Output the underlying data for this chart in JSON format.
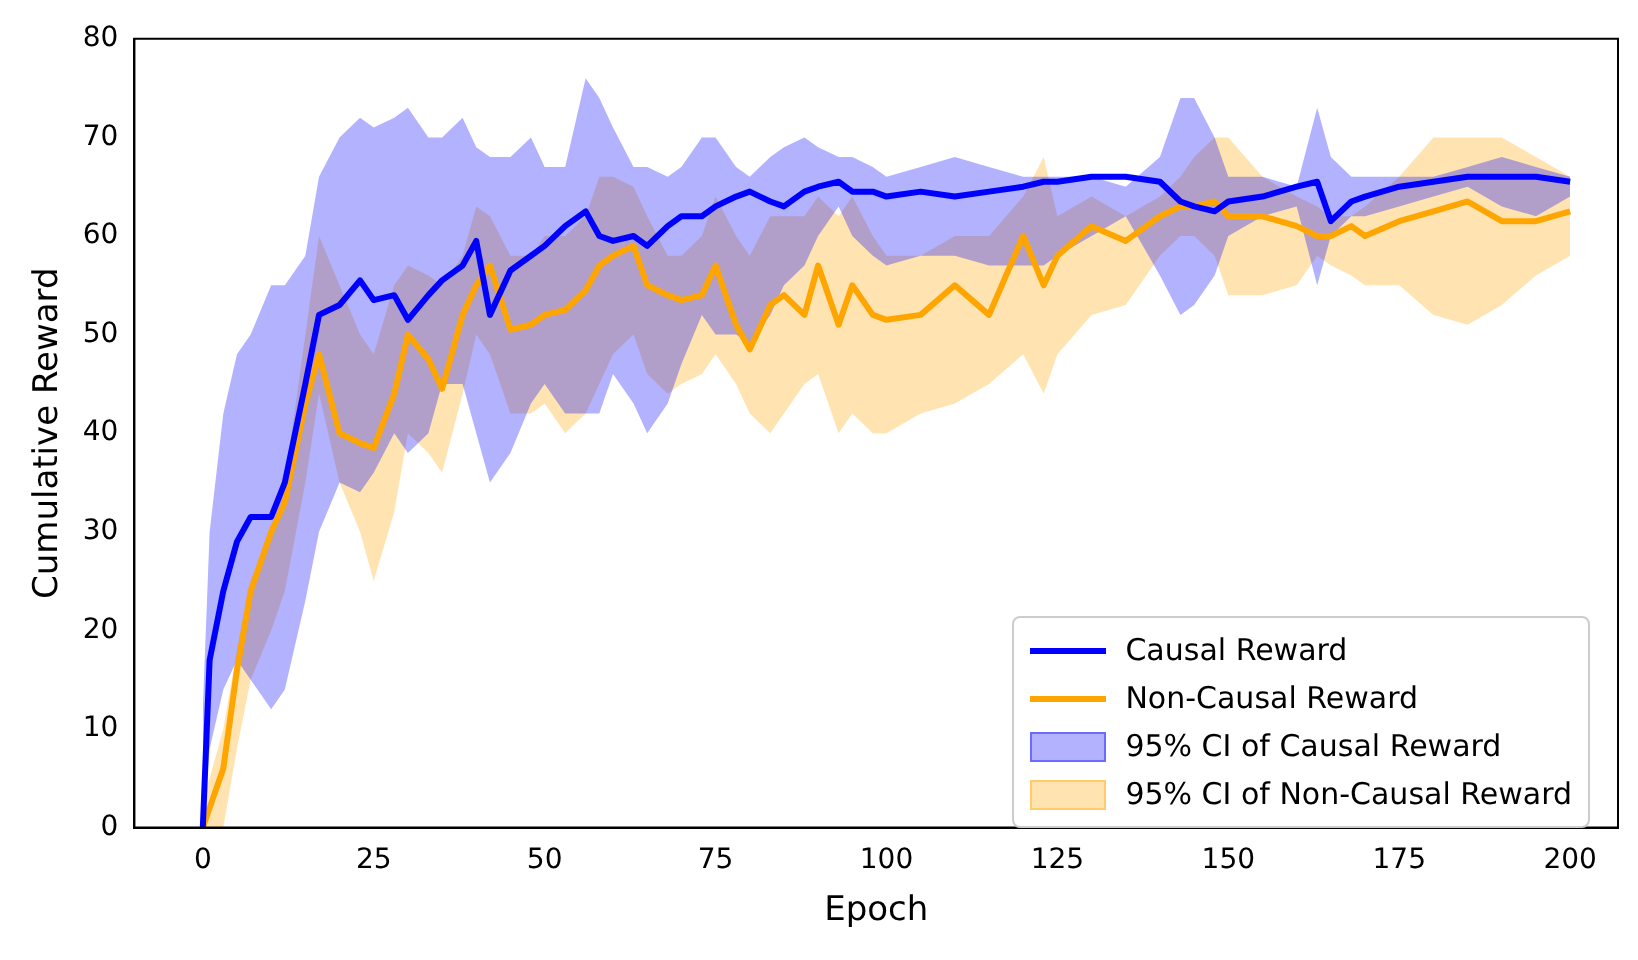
{
  "chart_data": {
    "type": "line",
    "xlabel": "Epoch",
    "ylabel": "Cumulative Reward",
    "xlim": [
      -10,
      207
    ],
    "xticks": [
      0,
      25,
      50,
      75,
      100,
      125,
      150,
      175,
      200
    ],
    "ylim": [
      0,
      80
    ],
    "yticks": [
      0,
      10,
      20,
      30,
      40,
      50,
      60,
      70,
      80
    ],
    "grid": false,
    "legend": "bottom right",
    "marker": "none",
    "line_style": "solid",
    "annotations": [
      "95% CI of Causal Reward",
      "95% CI of Non-Causal Reward"
    ],
    "x": [
      0,
      1,
      3,
      5,
      7,
      10,
      12,
      15,
      17,
      20,
      23,
      25,
      28,
      30,
      33,
      35,
      38,
      40,
      42,
      45,
      48,
      50,
      53,
      56,
      58,
      60,
      63,
      65,
      68,
      70,
      73,
      75,
      78,
      80,
      83,
      85,
      88,
      90,
      93,
      95,
      98,
      100,
      105,
      110,
      115,
      120,
      123,
      125,
      130,
      135,
      140,
      143,
      145,
      148,
      150,
      155,
      160,
      163,
      165,
      168,
      170,
      175,
      180,
      185,
      190,
      195,
      200
    ],
    "series": [
      {
        "name": "Causal Reward",
        "color": "#0000ff",
        "values": [
          0,
          17,
          24,
          29,
          31.5,
          31.5,
          35,
          45,
          52,
          53,
          55.5,
          53.5,
          54,
          51.5,
          54,
          55.5,
          57,
          59.5,
          52,
          56.5,
          58,
          59,
          61,
          62.5,
          60,
          59.5,
          60,
          59,
          61,
          62,
          62,
          63,
          64,
          64.5,
          63.5,
          63,
          64.5,
          65,
          65.5,
          64.5,
          64.5,
          64,
          64.5,
          64,
          64.5,
          65,
          65.5,
          65.5,
          66,
          66,
          65.5,
          63.5,
          63,
          62.5,
          63.5,
          64,
          65,
          65.5,
          61.5,
          63.5,
          64,
          65,
          65.5,
          66,
          66,
          66,
          65.5
        ],
        "lower": [
          0,
          8,
          14,
          17,
          15,
          12,
          14,
          23,
          30,
          35,
          34,
          36,
          40,
          38,
          40,
          45,
          45,
          40,
          35,
          38,
          43,
          45,
          42,
          42,
          42,
          46,
          43,
          40,
          43,
          47,
          52,
          50,
          50,
          49,
          52,
          55,
          57,
          60,
          63,
          60,
          58,
          57,
          58,
          58,
          57,
          57,
          57,
          58,
          60,
          62,
          56,
          52,
          53,
          56,
          60,
          62,
          63,
          55,
          60,
          62,
          62,
          63,
          64,
          65,
          63,
          62,
          64
        ],
        "upper": [
          12,
          30,
          42,
          48,
          50,
          55,
          55,
          58,
          66,
          70,
          72,
          71,
          72,
          73,
          70,
          70,
          72,
          69,
          68,
          68,
          70,
          67,
          67,
          76,
          74,
          71,
          67,
          67,
          66,
          67,
          70,
          70,
          67,
          66,
          68,
          69,
          70,
          69,
          68,
          68,
          67,
          66,
          67,
          68,
          67,
          66,
          66,
          66,
          66,
          65,
          68,
          74,
          74,
          70,
          66,
          66,
          65,
          73,
          68,
          66,
          66,
          66,
          66,
          67,
          68,
          67,
          66
        ]
      },
      {
        "name": "Non-Causal Reward",
        "color": "#ffa500",
        "values": [
          0,
          2,
          6,
          16,
          24,
          30,
          33,
          43,
          48,
          40,
          39,
          38.5,
          44,
          50,
          47.5,
          44.5,
          52,
          55,
          57,
          50.5,
          51,
          52,
          52.5,
          54.5,
          57,
          58,
          59,
          55,
          54,
          53.5,
          54,
          57,
          51,
          48.5,
          53,
          54,
          52,
          57,
          51,
          55,
          52,
          51.5,
          52,
          55,
          52,
          60,
          55,
          58,
          61,
          59.5,
          62,
          63,
          63,
          63.5,
          62,
          62,
          61,
          60,
          60,
          61,
          60,
          61.5,
          62.5,
          63.5,
          61.5,
          61.5,
          62.5
        ],
        "lower": [
          0,
          0,
          0,
          8,
          15,
          20,
          24,
          35,
          44,
          35,
          30,
          25,
          32,
          40,
          38,
          36,
          44,
          50,
          48,
          42,
          42,
          43,
          40,
          42,
          45,
          48,
          50,
          46,
          44,
          45,
          46,
          48,
          45,
          42,
          40,
          42,
          45,
          46,
          40,
          42,
          40,
          40,
          42,
          43,
          45,
          48,
          44,
          48,
          52,
          53,
          58,
          60,
          60,
          58,
          54,
          54,
          55,
          58,
          57,
          56,
          55,
          55,
          52,
          51,
          53,
          56,
          58
        ],
        "upper": [
          3,
          5,
          10,
          18,
          25,
          30,
          35,
          50,
          60,
          55,
          50,
          48,
          55,
          57,
          56,
          55,
          58,
          63,
          62,
          58,
          58,
          60,
          60,
          62,
          66,
          66,
          65,
          62,
          58,
          58,
          60,
          64,
          60,
          58,
          62,
          62,
          62,
          64,
          62,
          64,
          60,
          58,
          58,
          60,
          60,
          64,
          68,
          62,
          64,
          62,
          64,
          66,
          68,
          70,
          70,
          66,
          64,
          63,
          62,
          62,
          63,
          66,
          70,
          70,
          70,
          68,
          66
        ]
      }
    ]
  }
}
